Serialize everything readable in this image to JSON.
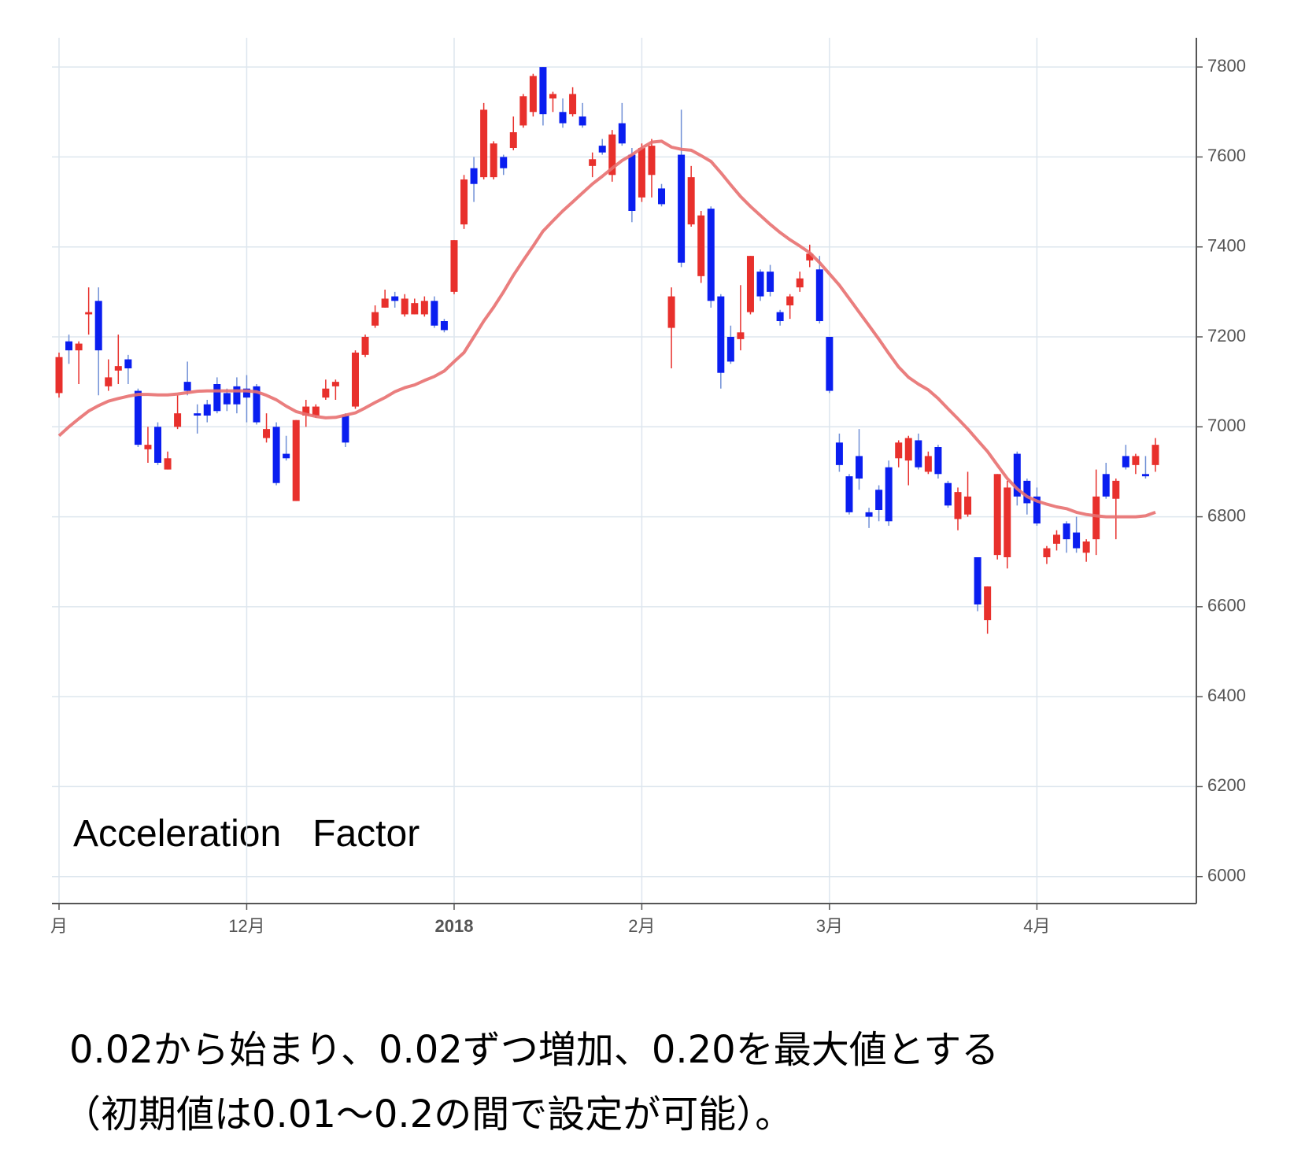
{
  "chart_data": {
    "type": "candlestick",
    "annotation": "Acceleration   Factor",
    "categories": [
      "月",
      null,
      null,
      null,
      null,
      null,
      null,
      null,
      null,
      null,
      null,
      null,
      null,
      null,
      null,
      null,
      null,
      null,
      null,
      "12月",
      null,
      null,
      null,
      null,
      null,
      null,
      null,
      null,
      null,
      null,
      null,
      null,
      null,
      null,
      null,
      null,
      null,
      null,
      null,
      null,
      "2018",
      null,
      null,
      null,
      null,
      null,
      null,
      null,
      null,
      null,
      null,
      null,
      null,
      null,
      null,
      null,
      null,
      null,
      null,
      "2月",
      null,
      null,
      null,
      null,
      null,
      null,
      null,
      null,
      null,
      null,
      null,
      null,
      null,
      null,
      null,
      null,
      null,
      null,
      "3月",
      null,
      null,
      null,
      null,
      null,
      null,
      null,
      null,
      null,
      null,
      null,
      null,
      null,
      null,
      null,
      null,
      null,
      null,
      null,
      null,
      "4月",
      null,
      null,
      null,
      null,
      null,
      null,
      null,
      null,
      null,
      null,
      null,
      null
    ],
    "open": [
      7075,
      7190,
      7170,
      7250,
      7280,
      7090,
      7125,
      7150,
      7080,
      6950,
      7000,
      6905,
      7000,
      7100,
      7030,
      7050,
      7095,
      7075,
      7090,
      7085,
      7090,
      6975,
      7000,
      6940,
      6835,
      7025,
      7025,
      7065,
      7090,
      7025,
      7045,
      7160,
      7225,
      7265,
      7290,
      7250,
      7250,
      7250,
      7280,
      7235,
      7300,
      7450,
      7575,
      7555,
      7555,
      7600,
      7620,
      7670,
      7700,
      7800,
      7730,
      7700,
      7695,
      7690,
      7580,
      7625,
      7560,
      7675,
      7605,
      7510,
      7560,
      7530,
      7220,
      7605,
      7450,
      7335,
      7485,
      7290,
      7200,
      7195,
      7255,
      7345,
      7345,
      7255,
      7270,
      7310,
      7370,
      7350,
      7200,
      6965,
      6890,
      6935,
      6810,
      6860,
      6910,
      6930,
      6925,
      6970,
      6900,
      6955,
      6875,
      6795,
      6805,
      6710,
      6570,
      6715,
      6710,
      6940,
      6880,
      6845,
      6710,
      6740,
      6785,
      6765,
      6720,
      6750,
      6895,
      6840,
      6935,
      6915,
      6895,
      6915
    ],
    "high": [
      7165,
      7205,
      7190,
      7310,
      7310,
      7150,
      7205,
      7160,
      7085,
      7000,
      7010,
      6945,
      7070,
      7145,
      7050,
      7060,
      7110,
      7085,
      7110,
      7115,
      7095,
      7030,
      7010,
      6980,
      7015,
      7060,
      7050,
      7105,
      7105,
      7030,
      7170,
      7205,
      7270,
      7305,
      7300,
      7295,
      7285,
      7290,
      7290,
      7240,
      7415,
      7560,
      7600,
      7720,
      7635,
      7605,
      7690,
      7740,
      7785,
      7800,
      7745,
      7730,
      7755,
      7720,
      7610,
      7640,
      7660,
      7720,
      7620,
      7630,
      7640,
      7540,
      7310,
      7705,
      7580,
      7480,
      7490,
      7295,
      7225,
      7315,
      7380,
      7350,
      7360,
      7260,
      7295,
      7345,
      7405,
      7380,
      7200,
      6985,
      6895,
      6995,
      6820,
      6870,
      6925,
      6970,
      6980,
      6985,
      6945,
      6960,
      6880,
      6865,
      6900,
      6710,
      6645,
      6895,
      6880,
      6945,
      6885,
      6865,
      6735,
      6770,
      6790,
      6800,
      6750,
      6905,
      6920,
      6885,
      6960,
      6940,
      6935,
      6975
    ],
    "low": [
      7065,
      7140,
      7095,
      7205,
      7070,
      7080,
      7095,
      7095,
      6955,
      6920,
      6915,
      6905,
      6995,
      7070,
      6985,
      7010,
      7030,
      7035,
      7030,
      7010,
      7005,
      6965,
      6870,
      6925,
      6835,
      7000,
      7020,
      7060,
      7060,
      6955,
      7040,
      7155,
      7220,
      7265,
      7265,
      7245,
      7250,
      7245,
      7220,
      7210,
      7295,
      7440,
      7500,
      7550,
      7550,
      7560,
      7615,
      7665,
      7690,
      7670,
      7700,
      7665,
      7690,
      7665,
      7555,
      7605,
      7545,
      7625,
      7455,
      7500,
      7510,
      7490,
      7130,
      7355,
      7445,
      7320,
      7265,
      7085,
      7140,
      7170,
      7250,
      7280,
      7290,
      7225,
      7240,
      7300,
      7355,
      7230,
      7075,
      6900,
      6805,
      6860,
      6775,
      6790,
      6780,
      6910,
      6870,
      6905,
      6895,
      6885,
      6820,
      6770,
      6800,
      6590,
      6540,
      6705,
      6685,
      6825,
      6805,
      6780,
      6695,
      6725,
      6720,
      6720,
      6700,
      6715,
      6840,
      6750,
      6905,
      6895,
      6885,
      6900
    ],
    "close": [
      7155,
      7170,
      7185,
      7255,
      7170,
      7110,
      7135,
      7130,
      6960,
      6960,
      6920,
      6930,
      7030,
      7080,
      7025,
      7025,
      7035,
      7050,
      7050,
      7065,
      7010,
      6995,
      6875,
      6930,
      7015,
      7045,
      7045,
      7085,
      7100,
      6965,
      7165,
      7200,
      7255,
      7285,
      7280,
      7285,
      7275,
      7280,
      7225,
      7215,
      7415,
      7550,
      7540,
      7705,
      7630,
      7575,
      7655,
      7735,
      7780,
      7695,
      7740,
      7675,
      7740,
      7670,
      7595,
      7610,
      7650,
      7630,
      7480,
      7620,
      7625,
      7495,
      7290,
      7365,
      7555,
      7470,
      7280,
      7120,
      7145,
      7210,
      7380,
      7290,
      7300,
      7235,
      7290,
      7330,
      7385,
      7235,
      7080,
      6915,
      6810,
      6885,
      6800,
      6815,
      6790,
      6965,
      6975,
      6910,
      6935,
      6895,
      6825,
      6855,
      6845,
      6605,
      6645,
      6895,
      6865,
      6845,
      6830,
      6785,
      6730,
      6760,
      6750,
      6730,
      6745,
      6845,
      6845,
      6880,
      6910,
      6935,
      6890,
      6960
    ],
    "up_color": "#e8302c",
    "down_color": "#0a1ef0",
    "moving_average": {
      "color": "#e87070",
      "values": [
        6980,
        7000,
        7018,
        7035,
        7047,
        7057,
        7063,
        7068,
        7072,
        7072,
        7071,
        7071,
        7073,
        7076,
        7079,
        7080,
        7080,
        7080,
        7080,
        7080,
        7078,
        7070,
        7060,
        7046,
        7034,
        7028,
        7023,
        7020,
        7021,
        7026,
        7031,
        7042,
        7054,
        7065,
        7078,
        7087,
        7093,
        7103,
        7112,
        7124,
        7145,
        7165,
        7200,
        7235,
        7266,
        7300,
        7337,
        7370,
        7402,
        7435,
        7458,
        7480,
        7500,
        7520,
        7540,
        7557,
        7575,
        7592,
        7605,
        7620,
        7633,
        7635,
        7622,
        7617,
        7615,
        7603,
        7590,
        7565,
        7538,
        7512,
        7490,
        7470,
        7450,
        7432,
        7416,
        7402,
        7387,
        7365,
        7340,
        7315,
        7285,
        7255,
        7225,
        7195,
        7163,
        7133,
        7110,
        7095,
        7082,
        7063,
        7040,
        7018,
        6995,
        6970,
        6945,
        6915,
        6885,
        6862,
        6845,
        6835,
        6828,
        6822,
        6818,
        6810,
        6805,
        6802,
        6800,
        6800,
        6800,
        6800,
        6802,
        6810
      ]
    },
    "ylim": [
      5940,
      7865
    ],
    "yticks": [
      6000,
      6200,
      6400,
      6600,
      6800,
      7000,
      7200,
      7400,
      7600,
      7800
    ],
    "grid": true,
    "notes": [
      "0.02から始まり、0.02ずつ増加、0.20を最大値とする",
      "（初期値は0.01～0.2の間で設定が可能）。"
    ]
  }
}
